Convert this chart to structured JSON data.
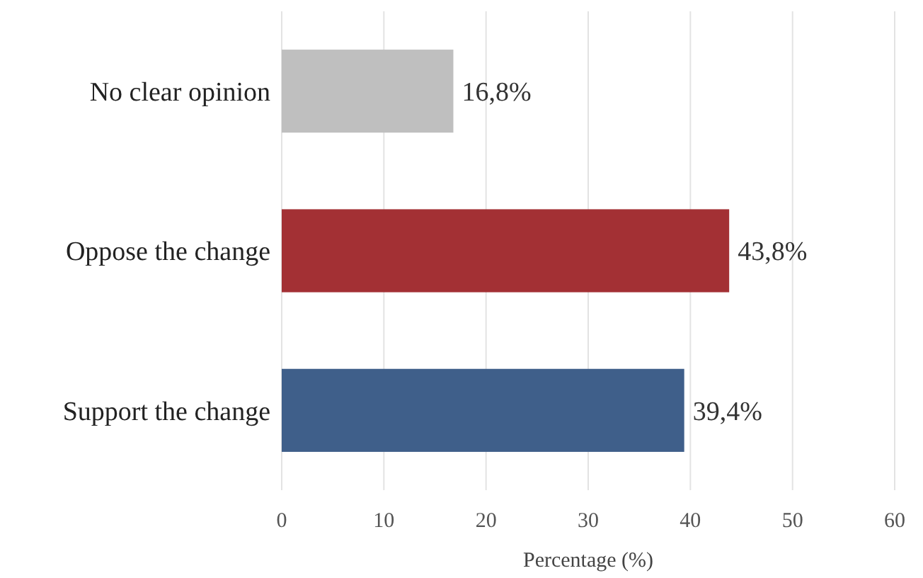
{
  "chart_data": {
    "type": "bar",
    "orientation": "horizontal",
    "categories": [
      "No clear opinion",
      "Oppose the change",
      "Support the change"
    ],
    "values": [
      16.8,
      43.8,
      39.4
    ],
    "colors": [
      "#bfbfbf",
      "#a33034",
      "#3f5f8a"
    ],
    "value_labels": [
      "16,8%",
      "43,8%",
      "39,4%"
    ],
    "xlabel": "Percentage (%)",
    "xlim": [
      0,
      60
    ],
    "xticks": [
      0,
      10,
      20,
      30,
      40,
      50,
      60
    ],
    "grid": "x"
  }
}
